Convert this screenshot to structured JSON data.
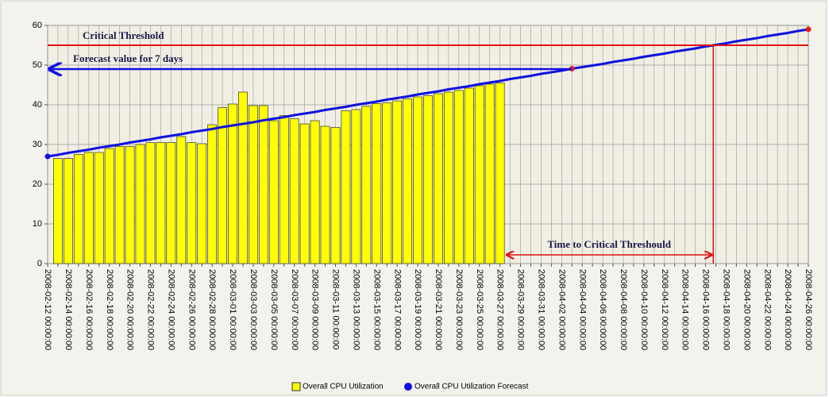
{
  "chart_data": {
    "type": "bar",
    "categories": [
      "2008-02-12 00:00:00",
      null,
      "2008-02-14 00:00:00",
      null,
      "2008-02-16 00:00:00",
      null,
      "2008-02-18 00:00:00",
      null,
      "2008-02-20 00:00:00",
      null,
      "2008-02-22 00:00:00",
      null,
      "2008-02-24 00:00:00",
      null,
      "2008-02-26 00:00:00",
      null,
      "2008-02-28 00:00:00",
      null,
      "2008-03-01 00:00:00",
      null,
      "2008-03-03 00:00:00",
      null,
      "2008-03-05 00:00:00",
      null,
      "2008-03-07 00:00:00",
      null,
      "2008-03-09 00:00:00",
      null,
      "2008-03-11 00:00:00",
      null,
      "2008-03-13 00:00:00",
      null,
      "2008-03-15 00:00:00",
      null,
      "2008-03-17 00:00:00",
      null,
      "2008-03-19 00:00:00",
      null,
      "2008-03-21 00:00:00",
      null,
      "2008-03-23 00:00:00",
      null,
      "2008-03-25 00:00:00",
      null,
      "2008-03-27 00:00:00",
      null,
      "2008-03-29 00:00:00",
      null,
      "2008-03-31 00:00:00",
      null,
      "2008-04-02 00:00:00",
      null,
      "2008-04-04 00:00:00",
      null,
      "2008-04-06 00:00:00",
      null,
      "2008-04-08 00:00:00",
      null,
      "2008-04-10 00:00:00",
      null,
      "2008-04-12 00:00:00",
      null,
      "2008-04-14 00:00:00",
      null,
      "2008-04-16 00:00:00",
      null,
      "2008-04-18 00:00:00",
      null,
      "2008-04-20 00:00:00",
      null,
      "2008-04-22 00:00:00",
      null,
      "2008-04-24 00:00:00",
      null,
      "2008-04-26 00:00:00"
    ],
    "series": [
      {
        "name": "Overall CPU Utilization",
        "color": "#ffff00",
        "type": "bar",
        "values": [
          null,
          26.5,
          26.5,
          27.5,
          28,
          28,
          29,
          29.5,
          29.5,
          30,
          30.5,
          30.5,
          30.5,
          32,
          30.5,
          30.2,
          35,
          39.3,
          40.2,
          43.2,
          39.8,
          39.8,
          36,
          37.3,
          36.5,
          35.2,
          36,
          34.6,
          34.3,
          38.5,
          38.8,
          39.6,
          40.3,
          40.5,
          41,
          41.5,
          42,
          42.3,
          42.8,
          43.2,
          43.6,
          44.2,
          44.8,
          45.2,
          45.5,
          null,
          null,
          null,
          null,
          null,
          null,
          null,
          null,
          null,
          null,
          null,
          null,
          null,
          null,
          null,
          null,
          null,
          null,
          null,
          null,
          null,
          null,
          null,
          null,
          null,
          null,
          null,
          null,
          null,
          null
        ]
      },
      {
        "name": "Overall CPU Utilization Forecast",
        "color": "#1010e0",
        "type": "line",
        "marker_colors": {
          "0": "#1010e0",
          "51": "#e02020",
          "74": "#e02020"
        },
        "values": [
          27.0,
          27.4,
          27.9,
          28.3,
          28.7,
          29.2,
          29.6,
          30.0,
          30.5,
          30.9,
          31.3,
          31.8,
          32.2,
          32.6,
          33.1,
          33.5,
          33.9,
          34.4,
          34.8,
          35.2,
          35.6,
          36.1,
          36.5,
          36.9,
          37.4,
          37.8,
          38.2,
          38.7,
          39.1,
          39.5,
          40.0,
          40.4,
          40.8,
          41.3,
          41.7,
          42.1,
          42.6,
          43.0,
          43.4,
          43.9,
          44.3,
          44.7,
          45.2,
          45.6,
          46.0,
          46.5,
          46.9,
          47.3,
          47.8,
          48.2,
          48.6,
          49.1,
          49.5,
          49.9,
          50.3,
          50.8,
          51.2,
          51.6,
          52.1,
          52.5,
          52.9,
          53.4,
          53.8,
          54.2,
          54.7,
          55.1,
          55.5,
          56.0,
          56.4,
          56.8,
          57.3,
          57.7,
          58.1,
          58.6,
          59.0
        ]
      }
    ],
    "ylim": [
      0,
      60
    ],
    "yticks": [
      0,
      10,
      20,
      30,
      40,
      50,
      60
    ],
    "grid": true,
    "annotations": {
      "critical": {
        "text": "Critical Threshold",
        "value": 55,
        "color": "#e01010"
      },
      "forecast": {
        "text": "Forecast value for 7 days",
        "value": 49,
        "color": "#1010e0"
      },
      "time_to_critical": {
        "text": "Time to Critical Threshould",
        "color": "#e01010"
      }
    }
  }
}
